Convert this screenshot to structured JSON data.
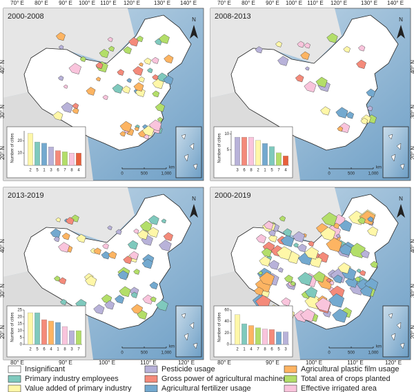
{
  "panels": [
    {
      "title": "2000-2008",
      "bars": {
        "categories": [
          "2",
          "5",
          "1",
          "3",
          "6",
          "7",
          "8",
          "4"
        ],
        "values": [
          26,
          19,
          18,
          15,
          12,
          11,
          10,
          10
        ],
        "colors": [
          "#fff7a8",
          "#7fc9bd",
          "#73a9cf",
          "#b8b2d9",
          "#f48a7a",
          "#b3de69",
          "#f9c4dc",
          "#e8603c"
        ],
        "ylim": [
          0,
          28
        ],
        "yticks": [
          10,
          20
        ]
      }
    },
    {
      "title": "2008-2013",
      "bars": {
        "categories": [
          "3",
          "6",
          "8",
          "2",
          "1",
          "5",
          "7",
          "4"
        ],
        "values": [
          9,
          9,
          9,
          8,
          7,
          6,
          4,
          3
        ],
        "colors": [
          "#b8b2d9",
          "#f48a7a",
          "#f9c4dc",
          "#fff7a8",
          "#73a9cf",
          "#7fc9bd",
          "#b3de69",
          "#e8603c"
        ],
        "ylim": [
          0,
          11
        ],
        "yticks": [
          5,
          10
        ]
      }
    },
    {
      "title": "2013-2019",
      "bars": {
        "categories": [
          "2",
          "5",
          "6",
          "4",
          "1",
          "8",
          "3",
          "7"
        ],
        "values": [
          23,
          23,
          18,
          17,
          16,
          13,
          10,
          10
        ],
        "colors": [
          "#fff7a8",
          "#7fc9bd",
          "#f48a7a",
          "#fdb462",
          "#73a9cf",
          "#f9c4dc",
          "#b8b2d9",
          "#b3de69"
        ],
        "ylim": [
          0,
          25
        ],
        "yticks": [
          0,
          5,
          10,
          15,
          20,
          25
        ]
      }
    },
    {
      "title": "2000-2019",
      "bars": {
        "categories": [
          "2",
          "1",
          "4",
          "7",
          "8",
          "6",
          "5",
          "3"
        ],
        "values": [
          52,
          36,
          33,
          29,
          27,
          26,
          22,
          22
        ],
        "colors": [
          "#fff7a8",
          "#7fc9bd",
          "#fdb462",
          "#b3de69",
          "#f9c4dc",
          "#f48a7a",
          "#73a9cf",
          "#b8b2d9"
        ],
        "ylim": [
          0,
          60
        ],
        "yticks": [
          0,
          20,
          40,
          60
        ]
      }
    }
  ],
  "axis_label": "Number of cities",
  "scale_labels": [
    "0",
    "500",
    "1,000",
    "km"
  ],
  "north": "N",
  "lon_top": [
    "70° E",
    "80° E",
    "90° E",
    "100° E",
    "110° E",
    "120° E",
    "130° E",
    "140° E"
  ],
  "lon_bottom": [
    "80° E",
    "90° E",
    "100° E",
    "110° E",
    "120° E"
  ],
  "lat": [
    "40° N",
    "30° N",
    "20° N"
  ],
  "legend": [
    {
      "label": "Insignificant",
      "color": "#ffffff"
    },
    {
      "label": "Pesticide usage",
      "color": "#b8b2d9"
    },
    {
      "label": "Agricultural plastic film usage",
      "color": "#fdb462"
    },
    {
      "label": "Primary industry employees",
      "color": "#7fc9bd"
    },
    {
      "label": "Gross power of agricultural machinery",
      "color": "#f48a7a"
    },
    {
      "label": "Total area of crops planted",
      "color": "#b3de69"
    },
    {
      "label": "Value added of primary industry",
      "color": "#fff7a8"
    },
    {
      "label": "Agricultural fertilizer usage",
      "color": "#73a9cf"
    },
    {
      "label": "Effective irrigated area",
      "color": "#f9c4dc"
    }
  ]
}
